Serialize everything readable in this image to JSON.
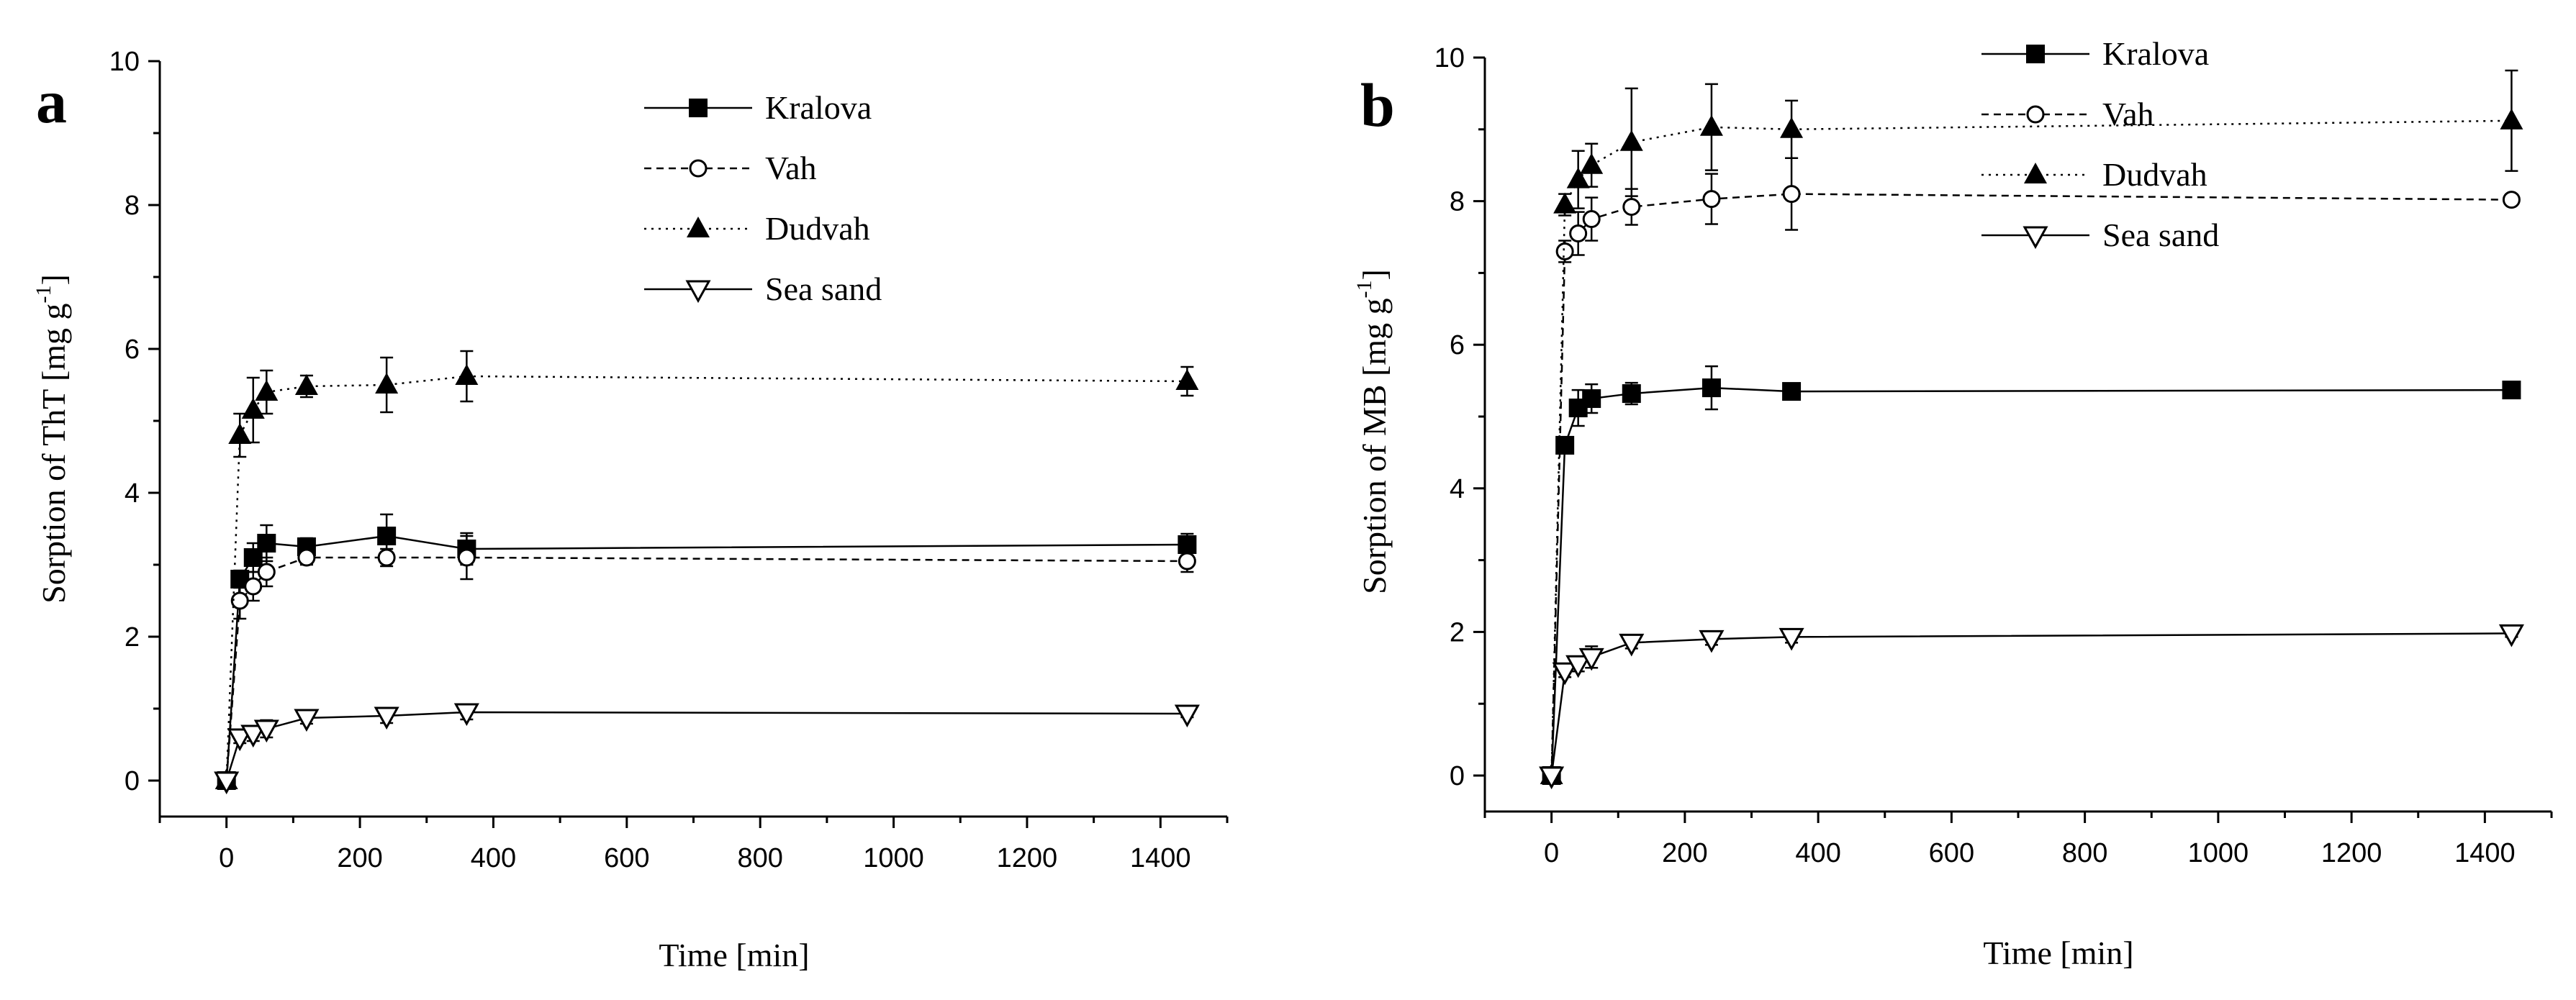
{
  "chart_data": [
    {
      "panel_label": "a",
      "type": "line",
      "xlabel": "Time [min]",
      "ylabel": "Sorption of ThT [mg g",
      "ylabel_sup": "-1",
      "ylabel_end": "]",
      "xlim": [
        -100,
        1500
      ],
      "ylim": [
        0,
        10
      ],
      "xticks": [
        0,
        200,
        400,
        600,
        800,
        1000,
        1200,
        1400
      ],
      "yticks": [
        0,
        2,
        4,
        6,
        8,
        10
      ],
      "series": [
        {
          "name": "Kralova",
          "marker": "square",
          "linestyle": "solid",
          "x": [
            0,
            20,
            40,
            60,
            120,
            240,
            360,
            1440
          ],
          "y": [
            0,
            2.8,
            3.1,
            3.3,
            3.25,
            3.4,
            3.22,
            3.28
          ],
          "err": [
            0,
            0.12,
            0.2,
            0.25,
            0.12,
            0.3,
            0.22,
            0.15
          ]
        },
        {
          "name": "Vah",
          "marker": "circle",
          "linestyle": "dashed",
          "x": [
            0,
            20,
            40,
            60,
            120,
            240,
            360,
            1440
          ],
          "y": [
            0,
            2.5,
            2.7,
            2.9,
            3.1,
            3.1,
            3.1,
            3.05
          ],
          "err": [
            0,
            0.25,
            0.2,
            0.2,
            0.1,
            0.12,
            0.3,
            0.15
          ]
        },
        {
          "name": "Dudvah",
          "marker": "triangle-up",
          "linestyle": "dotted",
          "x": [
            0,
            20,
            40,
            60,
            120,
            240,
            360,
            1440
          ],
          "y": [
            0,
            4.8,
            5.15,
            5.4,
            5.48,
            5.5,
            5.62,
            5.55
          ],
          "err": [
            0,
            0.3,
            0.45,
            0.3,
            0.15,
            0.38,
            0.35,
            0.2
          ]
        },
        {
          "name": "Sea sand",
          "marker": "triangle-down",
          "linestyle": "solid",
          "x": [
            0,
            20,
            40,
            60,
            120,
            240,
            360,
            1440
          ],
          "y": [
            0,
            0.6,
            0.65,
            0.72,
            0.87,
            0.9,
            0.95,
            0.93
          ],
          "err": [
            0,
            0.08,
            0.1,
            0.12,
            0.08,
            0.1,
            0.1,
            0.05
          ]
        }
      ]
    },
    {
      "panel_label": "b",
      "type": "line",
      "xlabel": "Time [min]",
      "ylabel": "Sorption of MB [mg g",
      "ylabel_sup": "-1",
      "ylabel_end": "]",
      "xlim": [
        -100,
        1500
      ],
      "ylim": [
        0,
        10
      ],
      "xticks": [
        0,
        200,
        400,
        600,
        800,
        1000,
        1200,
        1400
      ],
      "yticks": [
        0,
        2,
        4,
        6,
        8,
        10
      ],
      "series": [
        {
          "name": "Kralova",
          "marker": "square",
          "linestyle": "solid",
          "x": [
            0,
            20,
            40,
            60,
            120,
            240,
            360,
            1440
          ],
          "y": [
            0,
            4.6,
            5.12,
            5.25,
            5.32,
            5.4,
            5.35,
            5.37
          ],
          "err": [
            0,
            0.1,
            0.25,
            0.2,
            0.15,
            0.3,
            0.05,
            0.05
          ]
        },
        {
          "name": "Vah",
          "marker": "circle",
          "linestyle": "dashed",
          "x": [
            0,
            20,
            40,
            60,
            120,
            240,
            360,
            1440
          ],
          "y": [
            0,
            7.3,
            7.55,
            7.75,
            7.92,
            8.03,
            8.1,
            8.02
          ],
          "err": [
            0,
            0.15,
            0.3,
            0.3,
            0.25,
            0.35,
            0.5,
            0.05
          ]
        },
        {
          "name": "Dudvah",
          "marker": "triangle-up",
          "linestyle": "dotted",
          "x": [
            0,
            20,
            40,
            60,
            120,
            240,
            360,
            1440
          ],
          "y": [
            0,
            7.95,
            8.3,
            8.5,
            8.82,
            9.03,
            9.0,
            9.12
          ],
          "err": [
            0,
            0.15,
            0.4,
            0.3,
            0.75,
            0.6,
            0.4,
            0.7
          ]
        },
        {
          "name": "Sea sand",
          "marker": "triangle-down",
          "linestyle": "solid",
          "x": [
            0,
            20,
            40,
            60,
            120,
            240,
            360,
            1440
          ],
          "y": [
            0,
            1.45,
            1.55,
            1.65,
            1.85,
            1.9,
            1.93,
            1.98
          ],
          "err": [
            0,
            0.08,
            0.1,
            0.15,
            0.08,
            0.08,
            0.08,
            0.05
          ]
        }
      ]
    }
  ]
}
